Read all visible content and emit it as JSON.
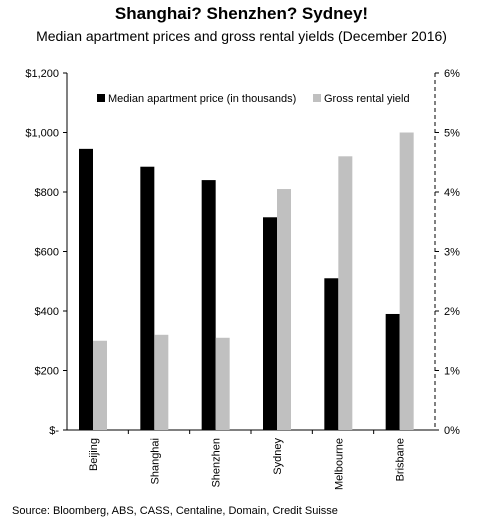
{
  "chart_data": {
    "type": "bar",
    "title": "Shanghai? Shenzhen? Sydney!",
    "subtitle": "Median apartment prices and gross rental yields (December 2016)",
    "categories": [
      "Beijing",
      "Shanghai",
      "Shenzhen",
      "Sydney",
      "Melbourne",
      "Brisbane"
    ],
    "series": [
      {
        "name": "Median apartment price (in thousands)",
        "axis": "left",
        "color": "#000000",
        "values": [
          945,
          885,
          840,
          715,
          510,
          390
        ]
      },
      {
        "name": "Gross rental yield",
        "axis": "right",
        "color": "#c0c0c0",
        "values": [
          1.5,
          1.6,
          1.55,
          4.05,
          4.6,
          5.0
        ]
      }
    ],
    "y_left": {
      "min": 0,
      "max": 1200,
      "step": 200,
      "tick_labels": [
        "$-",
        "$200",
        "$400",
        "$600",
        "$800",
        "$1,000",
        "$1,200"
      ]
    },
    "y_right": {
      "min": 0,
      "max": 6,
      "step": 1,
      "tick_labels": [
        "0%",
        "1%",
        "2%",
        "3%",
        "4%",
        "5%",
        "6%"
      ]
    },
    "legend_position": "top",
    "grid": false,
    "source": "Source: Bloomberg, ABS, CASS, Centaline, Domain, Credit Suisse"
  }
}
